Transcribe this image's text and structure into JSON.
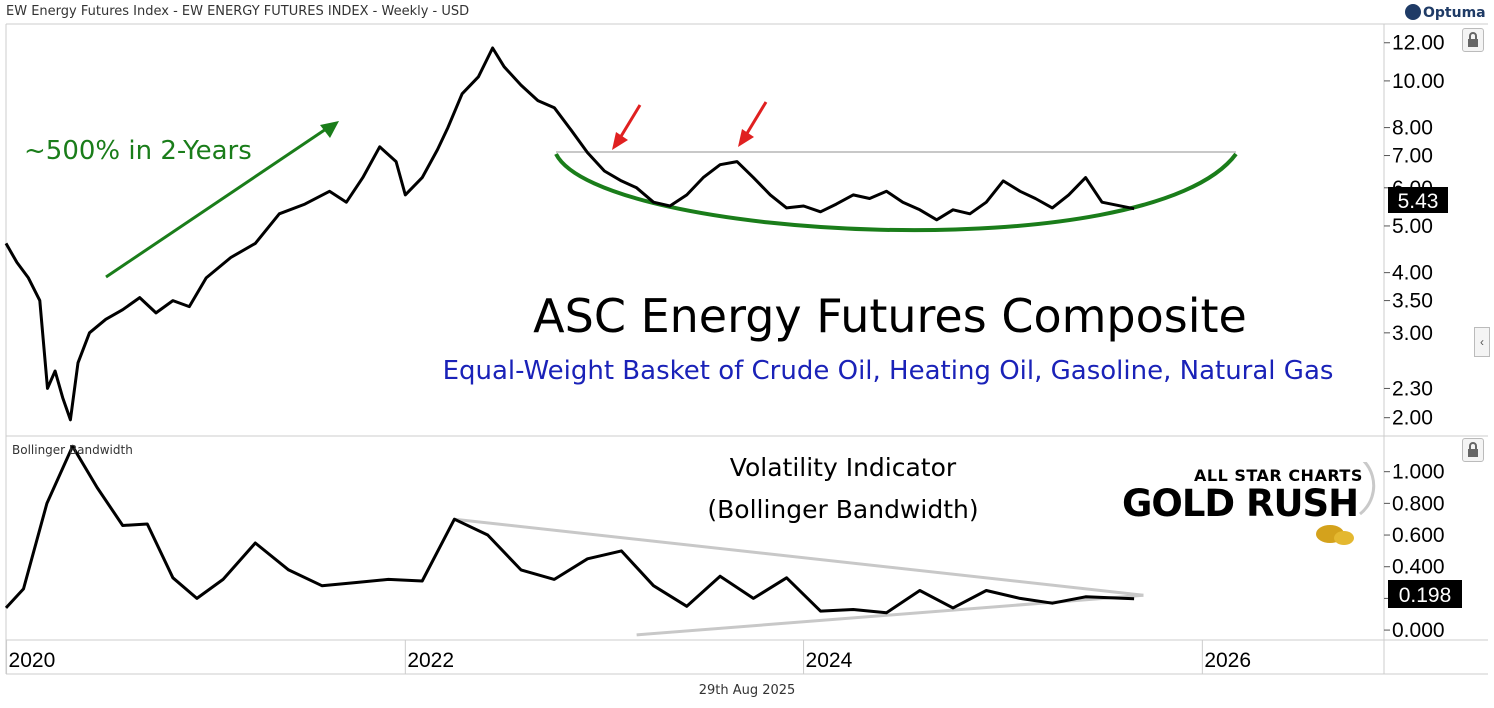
{
  "header": {
    "title": "EW Energy Futures Index - EW ENERGY FUTURES INDEX - Weekly - USD",
    "brand": "Optuma"
  },
  "footer_date": "29th Aug 2025",
  "watermark": {
    "line1": "ALL STAR CHARTS",
    "line2": "GOLD RUSH"
  },
  "colors": {
    "price_line": "#000000",
    "arrow_green": "#1a7d1a",
    "red_arrow": "#e02020",
    "subtitle_blue": "#1a22b8",
    "trend_gray": "#c8c8c8",
    "value_box": "#000000"
  },
  "icons": [
    "lock-icon",
    "collapse-chevron-icon",
    "optuma-logo-icon",
    "gold-nugget-icon"
  ],
  "chart_data": [
    {
      "type": "line",
      "panel": "price",
      "title": "ASC Energy Futures Composite",
      "subtitle": "Equal-Weight Basket of Crude Oil, Heating Oil, Gasoline, Natural Gas",
      "scale": "log",
      "ylim": [
        1.85,
        13.0
      ],
      "y_ticks": [
        12.0,
        10.0,
        8.0,
        7.0,
        6.0,
        5.0,
        4.0,
        3.5,
        3.0,
        2.3,
        2.0
      ],
      "y_tick_labels": [
        "12.00",
        "10.00",
        "8.00",
        "7.00",
        "6.00",
        "5.00",
        "4.00",
        "3.50",
        "3.00",
        "2.30",
        "2.00"
      ],
      "last_value": "5.43",
      "x_ticks": [
        "2020",
        "2022",
        "2024",
        "2026"
      ],
      "xlim": [
        "2019-12-31",
        "2026-11-30"
      ],
      "grid": false,
      "annotations": [
        "~500% in 2-Years"
      ],
      "series": [
        {
          "points": [
            [
              "2019-12-31",
              4.6
            ],
            [
              "2020-01-20",
              4.2
            ],
            [
              "2020-02-10",
              3.9
            ],
            [
              "2020-03-02",
              3.5
            ],
            [
              "2020-03-16",
              2.3
            ],
            [
              "2020-03-30",
              2.5
            ],
            [
              "2020-04-13",
              2.2
            ],
            [
              "2020-04-27",
              1.98
            ],
            [
              "2020-05-11",
              2.6
            ],
            [
              "2020-06-01",
              3.0
            ],
            [
              "2020-07-01",
              3.2
            ],
            [
              "2020-08-01",
              3.35
            ],
            [
              "2020-09-01",
              3.55
            ],
            [
              "2020-10-01",
              3.3
            ],
            [
              "2020-11-01",
              3.5
            ],
            [
              "2020-12-01",
              3.4
            ],
            [
              "2021-01-01",
              3.9
            ],
            [
              "2021-02-15",
              4.3
            ],
            [
              "2021-04-01",
              4.6
            ],
            [
              "2021-05-15",
              5.3
            ],
            [
              "2021-07-01",
              5.55
            ],
            [
              "2021-08-15",
              5.9
            ],
            [
              "2021-09-15",
              5.6
            ],
            [
              "2021-10-15",
              6.3
            ],
            [
              "2021-11-15",
              7.3
            ],
            [
              "2021-12-15",
              6.8
            ],
            [
              "2022-01-01",
              5.8
            ],
            [
              "2022-02-01",
              6.3
            ],
            [
              "2022-03-01",
              7.2
            ],
            [
              "2022-03-20",
              8.0
            ],
            [
              "2022-04-15",
              9.4
            ],
            [
              "2022-05-15",
              10.2
            ],
            [
              "2022-06-10",
              11.7
            ],
            [
              "2022-07-01",
              10.7
            ],
            [
              "2022-08-01",
              9.8
            ],
            [
              "2022-09-01",
              9.1
            ],
            [
              "2022-10-01",
              8.8
            ],
            [
              "2022-11-01",
              7.9
            ],
            [
              "2022-12-01",
              7.1
            ],
            [
              "2023-01-01",
              6.5
            ],
            [
              "2023-02-01",
              6.2
            ],
            [
              "2023-03-01",
              6.0
            ],
            [
              "2023-04-01",
              5.6
            ],
            [
              "2023-05-01",
              5.5
            ],
            [
              "2023-06-01",
              5.8
            ],
            [
              "2023-07-01",
              6.3
            ],
            [
              "2023-08-01",
              6.7
            ],
            [
              "2023-09-01",
              6.8
            ],
            [
              "2023-10-01",
              6.3
            ],
            [
              "2023-11-01",
              5.8
            ],
            [
              "2023-12-01",
              5.45
            ],
            [
              "2024-01-01",
              5.5
            ],
            [
              "2024-02-01",
              5.35
            ],
            [
              "2024-03-01",
              5.55
            ],
            [
              "2024-04-01",
              5.8
            ],
            [
              "2024-05-01",
              5.7
            ],
            [
              "2024-06-01",
              5.9
            ],
            [
              "2024-07-01",
              5.6
            ],
            [
              "2024-08-01",
              5.4
            ],
            [
              "2024-09-01",
              5.15
            ],
            [
              "2024-10-01",
              5.4
            ],
            [
              "2024-11-01",
              5.3
            ],
            [
              "2024-12-01",
              5.6
            ],
            [
              "2025-01-01",
              6.2
            ],
            [
              "2025-02-01",
              5.9
            ],
            [
              "2025-03-01",
              5.7
            ],
            [
              "2025-04-01",
              5.45
            ],
            [
              "2025-05-01",
              5.8
            ],
            [
              "2025-06-01",
              6.3
            ],
            [
              "2025-07-01",
              5.6
            ],
            [
              "2025-08-29",
              5.43
            ]
          ]
        }
      ]
    },
    {
      "type": "line",
      "panel": "bandwidth",
      "title": "Volatility Indicator (Bollinger Bandwidth)",
      "label": "Bollinger Bandwidth",
      "ylim": [
        -0.05,
        1.2
      ],
      "y_ticks": [
        0.0,
        0.2,
        0.4,
        0.6,
        0.8,
        1.0
      ],
      "y_tick_labels": [
        "0.000",
        "0.200",
        "0.400",
        "0.600",
        "0.800",
        "1.000"
      ],
      "last_value": "0.198",
      "series": [
        {
          "points": [
            [
              "2019-12-31",
              0.14
            ],
            [
              "2020-02-01",
              0.26
            ],
            [
              "2020-03-15",
              0.8
            ],
            [
              "2020-05-01",
              1.16
            ],
            [
              "2020-06-15",
              0.9
            ],
            [
              "2020-08-01",
              0.66
            ],
            [
              "2020-09-15",
              0.67
            ],
            [
              "2020-11-01",
              0.33
            ],
            [
              "2020-12-15",
              0.2
            ],
            [
              "2021-02-01",
              0.32
            ],
            [
              "2021-04-01",
              0.55
            ],
            [
              "2021-06-01",
              0.38
            ],
            [
              "2021-08-01",
              0.28
            ],
            [
              "2021-10-01",
              0.3
            ],
            [
              "2021-12-01",
              0.32
            ],
            [
              "2022-02-01",
              0.31
            ],
            [
              "2022-04-01",
              0.7
            ],
            [
              "2022-06-01",
              0.6
            ],
            [
              "2022-08-01",
              0.38
            ],
            [
              "2022-10-01",
              0.32
            ],
            [
              "2022-12-01",
              0.45
            ],
            [
              "2023-02-01",
              0.5
            ],
            [
              "2023-04-01",
              0.28
            ],
            [
              "2023-06-01",
              0.15
            ],
            [
              "2023-08-01",
              0.34
            ],
            [
              "2023-10-01",
              0.2
            ],
            [
              "2023-12-01",
              0.33
            ],
            [
              "2024-02-01",
              0.12
            ],
            [
              "2024-04-01",
              0.13
            ],
            [
              "2024-06-01",
              0.11
            ],
            [
              "2024-08-01",
              0.25
            ],
            [
              "2024-10-01",
              0.14
            ],
            [
              "2024-12-01",
              0.25
            ],
            [
              "2025-02-01",
              0.2
            ],
            [
              "2025-04-01",
              0.17
            ],
            [
              "2025-06-01",
              0.21
            ],
            [
              "2025-08-29",
              0.198
            ]
          ]
        }
      ],
      "trendlines": [
        [
          [
            "2022-04-01",
            0.7
          ],
          [
            "2025-09-15",
            0.22
          ]
        ],
        [
          [
            "2023-03-01",
            -0.03
          ],
          [
            "2025-09-15",
            0.22
          ]
        ]
      ]
    }
  ]
}
